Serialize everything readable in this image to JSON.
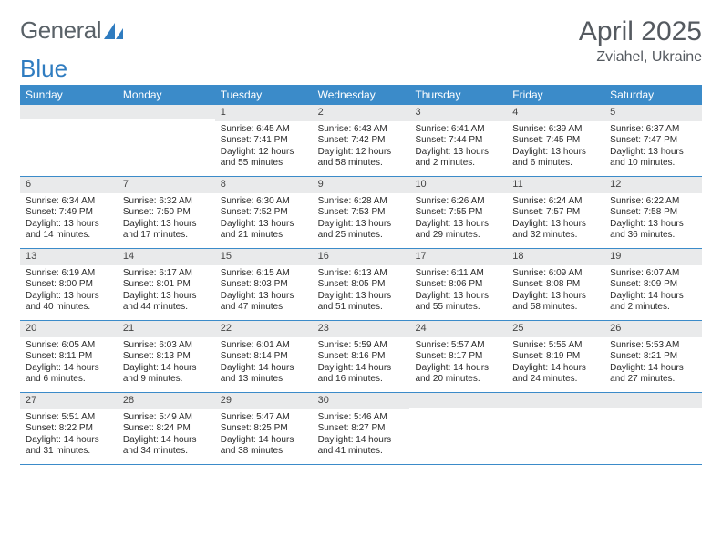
{
  "logo": {
    "text1": "General",
    "text2": "Blue",
    "color_gray": "#5a6268",
    "color_blue": "#2f7cc0"
  },
  "title": "April 2025",
  "location": "Zviahel, Ukraine",
  "colors": {
    "header_bg": "#3b8bc9",
    "header_text": "#ffffff",
    "daynum_bg": "#e9eaeb",
    "border": "#3b8bc9",
    "text": "#2a2a2a",
    "background": "#ffffff"
  },
  "weekdays": [
    "Sunday",
    "Monday",
    "Tuesday",
    "Wednesday",
    "Thursday",
    "Friday",
    "Saturday"
  ],
  "weeks": [
    [
      {
        "n": "",
        "sr": "",
        "ss": "",
        "dl": ""
      },
      {
        "n": "",
        "sr": "",
        "ss": "",
        "dl": ""
      },
      {
        "n": "1",
        "sr": "Sunrise: 6:45 AM",
        "ss": "Sunset: 7:41 PM",
        "dl": "Daylight: 12 hours and 55 minutes."
      },
      {
        "n": "2",
        "sr": "Sunrise: 6:43 AM",
        "ss": "Sunset: 7:42 PM",
        "dl": "Daylight: 12 hours and 58 minutes."
      },
      {
        "n": "3",
        "sr": "Sunrise: 6:41 AM",
        "ss": "Sunset: 7:44 PM",
        "dl": "Daylight: 13 hours and 2 minutes."
      },
      {
        "n": "4",
        "sr": "Sunrise: 6:39 AM",
        "ss": "Sunset: 7:45 PM",
        "dl": "Daylight: 13 hours and 6 minutes."
      },
      {
        "n": "5",
        "sr": "Sunrise: 6:37 AM",
        "ss": "Sunset: 7:47 PM",
        "dl": "Daylight: 13 hours and 10 minutes."
      }
    ],
    [
      {
        "n": "6",
        "sr": "Sunrise: 6:34 AM",
        "ss": "Sunset: 7:49 PM",
        "dl": "Daylight: 13 hours and 14 minutes."
      },
      {
        "n": "7",
        "sr": "Sunrise: 6:32 AM",
        "ss": "Sunset: 7:50 PM",
        "dl": "Daylight: 13 hours and 17 minutes."
      },
      {
        "n": "8",
        "sr": "Sunrise: 6:30 AM",
        "ss": "Sunset: 7:52 PM",
        "dl": "Daylight: 13 hours and 21 minutes."
      },
      {
        "n": "9",
        "sr": "Sunrise: 6:28 AM",
        "ss": "Sunset: 7:53 PM",
        "dl": "Daylight: 13 hours and 25 minutes."
      },
      {
        "n": "10",
        "sr": "Sunrise: 6:26 AM",
        "ss": "Sunset: 7:55 PM",
        "dl": "Daylight: 13 hours and 29 minutes."
      },
      {
        "n": "11",
        "sr": "Sunrise: 6:24 AM",
        "ss": "Sunset: 7:57 PM",
        "dl": "Daylight: 13 hours and 32 minutes."
      },
      {
        "n": "12",
        "sr": "Sunrise: 6:22 AM",
        "ss": "Sunset: 7:58 PM",
        "dl": "Daylight: 13 hours and 36 minutes."
      }
    ],
    [
      {
        "n": "13",
        "sr": "Sunrise: 6:19 AM",
        "ss": "Sunset: 8:00 PM",
        "dl": "Daylight: 13 hours and 40 minutes."
      },
      {
        "n": "14",
        "sr": "Sunrise: 6:17 AM",
        "ss": "Sunset: 8:01 PM",
        "dl": "Daylight: 13 hours and 44 minutes."
      },
      {
        "n": "15",
        "sr": "Sunrise: 6:15 AM",
        "ss": "Sunset: 8:03 PM",
        "dl": "Daylight: 13 hours and 47 minutes."
      },
      {
        "n": "16",
        "sr": "Sunrise: 6:13 AM",
        "ss": "Sunset: 8:05 PM",
        "dl": "Daylight: 13 hours and 51 minutes."
      },
      {
        "n": "17",
        "sr": "Sunrise: 6:11 AM",
        "ss": "Sunset: 8:06 PM",
        "dl": "Daylight: 13 hours and 55 minutes."
      },
      {
        "n": "18",
        "sr": "Sunrise: 6:09 AM",
        "ss": "Sunset: 8:08 PM",
        "dl": "Daylight: 13 hours and 58 minutes."
      },
      {
        "n": "19",
        "sr": "Sunrise: 6:07 AM",
        "ss": "Sunset: 8:09 PM",
        "dl": "Daylight: 14 hours and 2 minutes."
      }
    ],
    [
      {
        "n": "20",
        "sr": "Sunrise: 6:05 AM",
        "ss": "Sunset: 8:11 PM",
        "dl": "Daylight: 14 hours and 6 minutes."
      },
      {
        "n": "21",
        "sr": "Sunrise: 6:03 AM",
        "ss": "Sunset: 8:13 PM",
        "dl": "Daylight: 14 hours and 9 minutes."
      },
      {
        "n": "22",
        "sr": "Sunrise: 6:01 AM",
        "ss": "Sunset: 8:14 PM",
        "dl": "Daylight: 14 hours and 13 minutes."
      },
      {
        "n": "23",
        "sr": "Sunrise: 5:59 AM",
        "ss": "Sunset: 8:16 PM",
        "dl": "Daylight: 14 hours and 16 minutes."
      },
      {
        "n": "24",
        "sr": "Sunrise: 5:57 AM",
        "ss": "Sunset: 8:17 PM",
        "dl": "Daylight: 14 hours and 20 minutes."
      },
      {
        "n": "25",
        "sr": "Sunrise: 5:55 AM",
        "ss": "Sunset: 8:19 PM",
        "dl": "Daylight: 14 hours and 24 minutes."
      },
      {
        "n": "26",
        "sr": "Sunrise: 5:53 AM",
        "ss": "Sunset: 8:21 PM",
        "dl": "Daylight: 14 hours and 27 minutes."
      }
    ],
    [
      {
        "n": "27",
        "sr": "Sunrise: 5:51 AM",
        "ss": "Sunset: 8:22 PM",
        "dl": "Daylight: 14 hours and 31 minutes."
      },
      {
        "n": "28",
        "sr": "Sunrise: 5:49 AM",
        "ss": "Sunset: 8:24 PM",
        "dl": "Daylight: 14 hours and 34 minutes."
      },
      {
        "n": "29",
        "sr": "Sunrise: 5:47 AM",
        "ss": "Sunset: 8:25 PM",
        "dl": "Daylight: 14 hours and 38 minutes."
      },
      {
        "n": "30",
        "sr": "Sunrise: 5:46 AM",
        "ss": "Sunset: 8:27 PM",
        "dl": "Daylight: 14 hours and 41 minutes."
      },
      {
        "n": "",
        "sr": "",
        "ss": "",
        "dl": ""
      },
      {
        "n": "",
        "sr": "",
        "ss": "",
        "dl": ""
      },
      {
        "n": "",
        "sr": "",
        "ss": "",
        "dl": ""
      }
    ]
  ]
}
